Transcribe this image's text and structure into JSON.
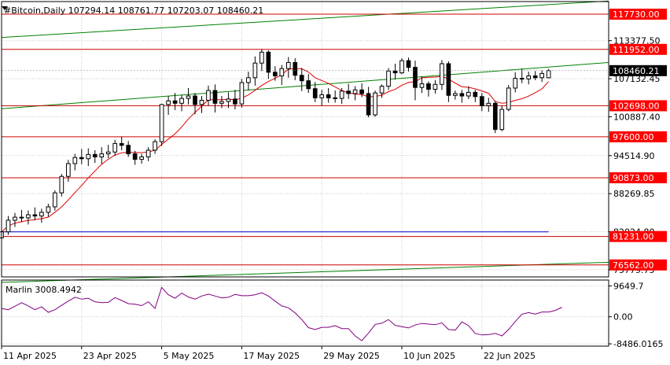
{
  "header": {
    "symbol_line": "#Bitcoin,Daily  107294.14 108761.77 107203.07 108460.21"
  },
  "colors": {
    "background": "#ffffff",
    "grid": "#c8c8c8",
    "resistance_line": "#cc0000",
    "channel_line": "#008000",
    "ma_fast": "#e00000",
    "ma_slow": "#0000d0",
    "candle": "#000000",
    "marlin": "#800080",
    "price_tag_bg": "#ff0000",
    "price_tag_text": "#ffffff"
  },
  "chart_data": [
    {
      "type": "candlestick",
      "title": "#Bitcoin,Daily",
      "ohlc_last": {
        "open": 107294.14,
        "high": 108761.77,
        "low": 107203.07,
        "close": 108460.21
      },
      "price_axis_ticks": [
        "113377.50",
        "107132.45",
        "100887.40",
        "94514.90",
        "88269.85",
        "82024.80",
        "75779.75"
      ],
      "current_price": "108460.21",
      "levels": [
        "117730.00",
        "111952.00",
        "102698.00",
        "97600.00",
        "90873.00",
        "81231.00",
        "76562.00"
      ],
      "level_values": [
        117730,
        111952,
        102698,
        97600,
        90873,
        81231,
        76562
      ],
      "date_ticks": [
        "11 Apr 2025",
        "23 Apr 2025",
        "5 May 2025",
        "17 May 2025",
        "29 May 2025",
        "10 Jun 2025",
        "22 Jun 2025"
      ],
      "ylim": [
        74600,
        119800
      ],
      "x_range": [
        0,
        91
      ],
      "grid": true,
      "candles": [
        [
          81000,
          82400,
          79800,
          82000
        ],
        [
          82000,
          84600,
          81500,
          83900
        ],
        [
          83900,
          85100,
          82800,
          84400
        ],
        [
          84400,
          85600,
          83600,
          84300
        ],
        [
          84300,
          85500,
          83200,
          84800
        ],
        [
          84800,
          86000,
          83900,
          84600
        ],
        [
          84600,
          85800,
          83500,
          85200
        ],
        [
          85200,
          86600,
          84500,
          86100
        ],
        [
          86100,
          88800,
          85500,
          88400
        ],
        [
          88400,
          91500,
          87800,
          91100
        ],
        [
          91100,
          93800,
          90200,
          93200
        ],
        [
          93200,
          94800,
          92100,
          94200
        ],
        [
          94200,
          95600,
          93100,
          94000
        ],
        [
          94000,
          95700,
          92800,
          94700
        ],
        [
          94700,
          95400,
          93300,
          94300
        ],
        [
          94300,
          95900,
          93200,
          94800
        ],
        [
          94800,
          96300,
          94100,
          95100
        ],
        [
          95100,
          97100,
          94500,
          96500
        ],
        [
          96500,
          97600,
          95400,
          96200
        ],
        [
          96200,
          96900,
          94300,
          94800
        ],
        [
          94800,
          95300,
          93000,
          93900
        ],
        [
          93900,
          94800,
          93200,
          94300
        ],
        [
          94300,
          95900,
          93600,
          95400
        ],
        [
          95400,
          97200,
          94800,
          96800
        ],
        [
          96800,
          103000,
          96100,
          102900
        ],
        [
          102900,
          104300,
          101200,
          103500
        ],
        [
          103500,
          104800,
          102000,
          103100
        ],
        [
          103100,
          104500,
          101800,
          103900
        ],
        [
          103900,
          105600,
          102900,
          104300
        ],
        [
          104300,
          104800,
          101300,
          102900
        ],
        [
          102900,
          104300,
          101500,
          103600
        ],
        [
          103600,
          106000,
          102700,
          105200
        ],
        [
          105200,
          106200,
          101600,
          103100
        ],
        [
          103100,
          104300,
          102300,
          103400
        ],
        [
          103400,
          104900,
          102300,
          103800
        ],
        [
          103800,
          105300,
          102100,
          103000
        ],
        [
          103000,
          107100,
          102400,
          106500
        ],
        [
          106500,
          108300,
          105200,
          107300
        ],
        [
          107300,
          110800,
          106000,
          109700
        ],
        [
          109700,
          112000,
          108400,
          111500
        ],
        [
          111500,
          111800,
          107100,
          108200
        ],
        [
          108200,
          109200,
          106800,
          107600
        ],
        [
          107600,
          109400,
          106100,
          108800
        ],
        [
          108800,
          110700,
          107300,
          109800
        ],
        [
          109800,
          110500,
          106900,
          107700
        ],
        [
          107700,
          108900,
          105100,
          106800
        ],
        [
          106800,
          107900,
          104800,
          105500
        ],
        [
          105500,
          106600,
          103300,
          104000
        ],
        [
          104000,
          105300,
          102700,
          104500
        ],
        [
          104500,
          105600,
          103200,
          104000
        ],
        [
          104000,
          105200,
          103200,
          103900
        ],
        [
          103900,
          105600,
          103000,
          105100
        ],
        [
          105100,
          106300,
          103800,
          104700
        ],
        [
          104700,
          105900,
          103600,
          105300
        ],
        [
          105300,
          106400,
          104100,
          104700
        ],
        [
          104700,
          105800,
          100800,
          101200
        ],
        [
          101200,
          105200,
          100900,
          104800
        ],
        [
          104800,
          106200,
          104000,
          105900
        ],
        [
          105900,
          108900,
          105300,
          108400
        ],
        [
          108400,
          109600,
          107000,
          108100
        ],
        [
          108100,
          110500,
          107900,
          110100
        ],
        [
          110100,
          110600,
          108300,
          109000
        ],
        [
          109000,
          110100,
          103600,
          105700
        ],
        [
          105700,
          107500,
          104800,
          106300
        ],
        [
          106300,
          106700,
          104200,
          105400
        ],
        [
          105400,
          106900,
          104700,
          106200
        ],
        [
          106200,
          110200,
          105300,
          109600
        ],
        [
          109600,
          110000,
          103300,
          104400
        ],
        [
          104400,
          105200,
          103700,
          104700
        ],
        [
          104700,
          105300,
          103200,
          104300
        ],
        [
          104300,
          105900,
          103800,
          104900
        ],
        [
          104900,
          105300,
          103300,
          104200
        ],
        [
          104200,
          104800,
          101800,
          102700
        ],
        [
          102700,
          104000,
          101700,
          103100
        ],
        [
          103100,
          103500,
          98200,
          98800
        ],
        [
          98800,
          102700,
          98500,
          102100
        ],
        [
          102100,
          106100,
          101800,
          105600
        ],
        [
          105600,
          108200,
          104900,
          107200
        ],
        [
          107200,
          108800,
          106400,
          107100
        ],
        [
          107100,
          108300,
          106200,
          107600
        ],
        [
          107600,
          108400,
          106900,
          107300
        ],
        [
          107300,
          108500,
          106600,
          108000
        ],
        [
          107294.14,
          108761.77,
          107203.07,
          108460.21
        ]
      ]
    },
    {
      "type": "line",
      "title": "Marlin 3008.4942",
      "value": 3008.4942,
      "axis_ticks": [
        "9649.7",
        "0.00",
        "-8486.0165"
      ],
      "axis_values": [
        9649.7,
        0,
        -8486.0165
      ],
      "ylim": [
        -9200,
        11500
      ],
      "values": [
        2600,
        2200,
        3300,
        4400,
        3400,
        2200,
        3100,
        1400,
        2200,
        3600,
        4900,
        6100,
        5500,
        5800,
        4700,
        4400,
        4500,
        6000,
        5100,
        4100,
        3900,
        3500,
        4700,
        2600,
        9200,
        6900,
        5800,
        7400,
        6200,
        5500,
        6500,
        7100,
        6500,
        5900,
        6100,
        7000,
        6600,
        6600,
        6900,
        7500,
        6500,
        4900,
        3400,
        2800,
        1200,
        -900,
        -3400,
        -4000,
        -3300,
        -3300,
        -2800,
        -3700,
        -3700,
        -6000,
        -7500,
        -5100,
        -2400,
        -2000,
        -900,
        -2700,
        -3100,
        -3500,
        -2600,
        -2100,
        -2300,
        -2500,
        -1900,
        -4000,
        -4200,
        -1600,
        -2800,
        -5200,
        -5700,
        -5600,
        -5200,
        -6000,
        -4000,
        -1500,
        800,
        1300,
        800,
        1500,
        1500,
        2000,
        3000
      ]
    }
  ]
}
